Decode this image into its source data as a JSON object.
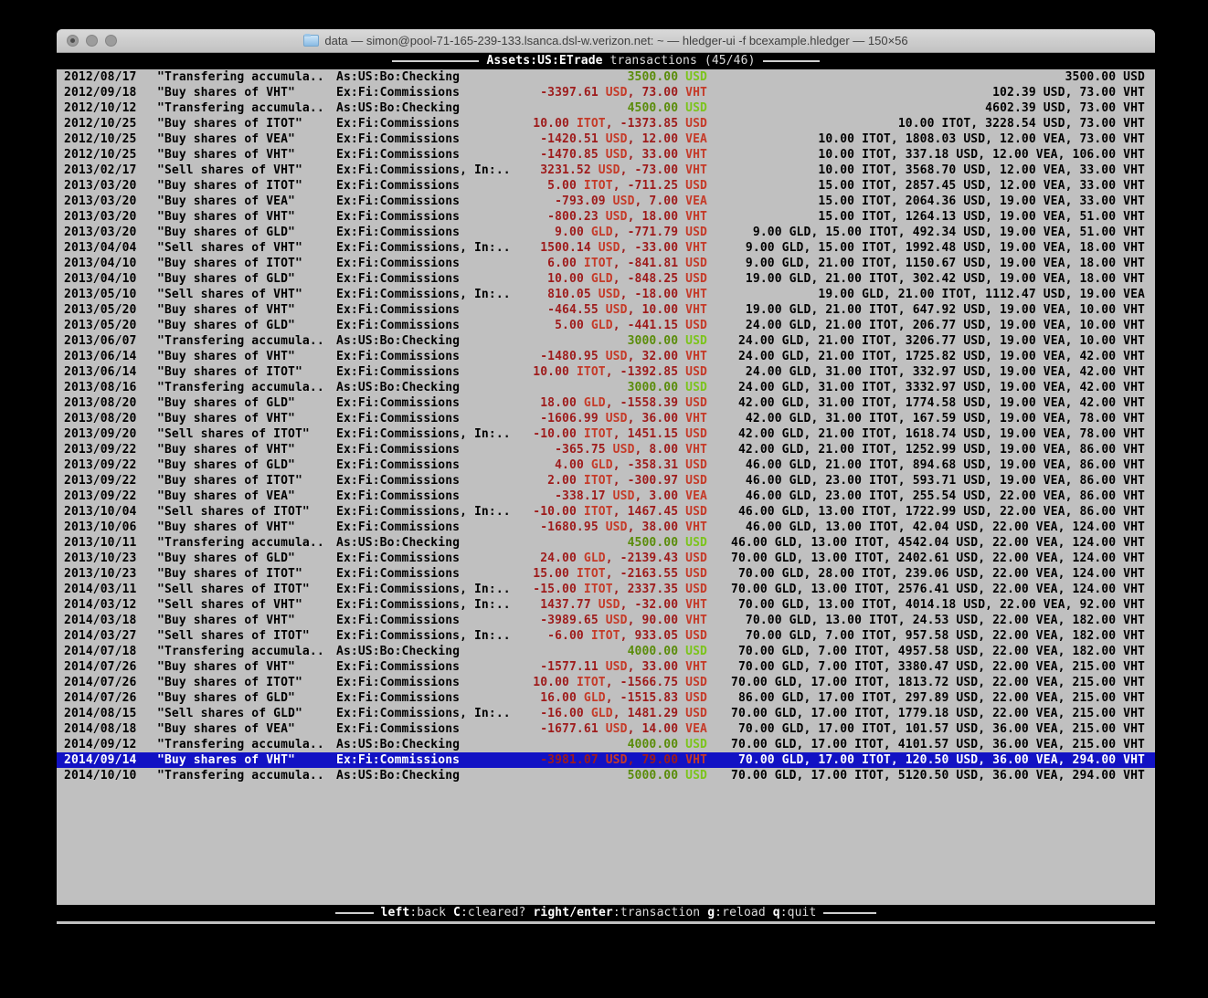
{
  "window": {
    "title": "data — simon@pool-71-165-239-133.lsanca.dsl-w.verizon.net: ~ — hledger-ui -f bcexample.hledger — 150×56"
  },
  "header": {
    "account": "Assets:US:ETrade",
    "mode_and_count": "transactions (45/46)"
  },
  "bottom_bar": {
    "items": [
      {
        "key": "left",
        "action": "back"
      },
      {
        "key": "C",
        "action": "cleared?"
      },
      {
        "key": "right/enter",
        "action": "transaction"
      },
      {
        "key": "g",
        "action": "reload"
      },
      {
        "key": "q",
        "action": "quit"
      }
    ]
  },
  "colors": {
    "terminal_bg": "#c0c0c0",
    "selection_bg": "#1212c4",
    "positive_num": "#5a8c0a",
    "positive_commodity": "#7cc41c",
    "negative_num": "#9e1b1b",
    "negative_commodity": "#c53a28",
    "bar_text": "#dcdcdc",
    "bar_text_bright": "#ffffff"
  },
  "transactions": {
    "rows": [
      {
        "date": "2012/08/17",
        "description": "\"Transfering accumula..",
        "other_accounts": "As:US:Bo:Checking",
        "amount": "3500.00 USD",
        "total": "3500.00 USD",
        "selected": false
      },
      {
        "date": "2012/09/18",
        "description": "\"Buy shares of VHT\"",
        "other_accounts": "Ex:Fi:Commissions",
        "amount": "-3397.61 USD, 73.00 VHT",
        "total": "102.39 USD, 73.00 VHT",
        "selected": false
      },
      {
        "date": "2012/10/12",
        "description": "\"Transfering accumula..",
        "other_accounts": "As:US:Bo:Checking",
        "amount": "4500.00 USD",
        "total": "4602.39 USD, 73.00 VHT",
        "selected": false
      },
      {
        "date": "2012/10/25",
        "description": "\"Buy shares of ITOT\"",
        "other_accounts": "Ex:Fi:Commissions",
        "amount": "10.00 ITOT, -1373.85 USD",
        "total": "10.00 ITOT, 3228.54 USD, 73.00 VHT",
        "selected": false
      },
      {
        "date": "2012/10/25",
        "description": "\"Buy shares of VEA\"",
        "other_accounts": "Ex:Fi:Commissions",
        "amount": "-1420.51 USD, 12.00 VEA",
        "total": "10.00 ITOT, 1808.03 USD, 12.00 VEA, 73.00 VHT",
        "selected": false
      },
      {
        "date": "2012/10/25",
        "description": "\"Buy shares of VHT\"",
        "other_accounts": "Ex:Fi:Commissions",
        "amount": "-1470.85 USD, 33.00 VHT",
        "total": "10.00 ITOT, 337.18 USD, 12.00 VEA, 106.00 VHT",
        "selected": false
      },
      {
        "date": "2013/02/17",
        "description": "\"Sell shares of VHT\"",
        "other_accounts": "Ex:Fi:Commissions, In:..",
        "amount": "3231.52 USD, -73.00 VHT",
        "total": "10.00 ITOT, 3568.70 USD, 12.00 VEA, 33.00 VHT",
        "selected": false
      },
      {
        "date": "2013/03/20",
        "description": "\"Buy shares of ITOT\"",
        "other_accounts": "Ex:Fi:Commissions",
        "amount": "5.00 ITOT, -711.25 USD",
        "total": "15.00 ITOT, 2857.45 USD, 12.00 VEA, 33.00 VHT",
        "selected": false
      },
      {
        "date": "2013/03/20",
        "description": "\"Buy shares of VEA\"",
        "other_accounts": "Ex:Fi:Commissions",
        "amount": "-793.09 USD, 7.00 VEA",
        "total": "15.00 ITOT, 2064.36 USD, 19.00 VEA, 33.00 VHT",
        "selected": false
      },
      {
        "date": "2013/03/20",
        "description": "\"Buy shares of VHT\"",
        "other_accounts": "Ex:Fi:Commissions",
        "amount": "-800.23 USD, 18.00 VHT",
        "total": "15.00 ITOT, 1264.13 USD, 19.00 VEA, 51.00 VHT",
        "selected": false
      },
      {
        "date": "2013/03/20",
        "description": "\"Buy shares of GLD\"",
        "other_accounts": "Ex:Fi:Commissions",
        "amount": "9.00 GLD, -771.79 USD",
        "total": "9.00 GLD, 15.00 ITOT, 492.34 USD, 19.00 VEA, 51.00 VHT",
        "selected": false
      },
      {
        "date": "2013/04/04",
        "description": "\"Sell shares of VHT\"",
        "other_accounts": "Ex:Fi:Commissions, In:..",
        "amount": "1500.14 USD, -33.00 VHT",
        "total": "9.00 GLD, 15.00 ITOT, 1992.48 USD, 19.00 VEA, 18.00 VHT",
        "selected": false
      },
      {
        "date": "2013/04/10",
        "description": "\"Buy shares of ITOT\"",
        "other_accounts": "Ex:Fi:Commissions",
        "amount": "6.00 ITOT, -841.81 USD",
        "total": "9.00 GLD, 21.00 ITOT, 1150.67 USD, 19.00 VEA, 18.00 VHT",
        "selected": false
      },
      {
        "date": "2013/04/10",
        "description": "\"Buy shares of GLD\"",
        "other_accounts": "Ex:Fi:Commissions",
        "amount": "10.00 GLD, -848.25 USD",
        "total": "19.00 GLD, 21.00 ITOT, 302.42 USD, 19.00 VEA, 18.00 VHT",
        "selected": false
      },
      {
        "date": "2013/05/10",
        "description": "\"Sell shares of VHT\"",
        "other_accounts": "Ex:Fi:Commissions, In:..",
        "amount": "810.05 USD, -18.00 VHT",
        "total": "19.00 GLD, 21.00 ITOT, 1112.47 USD, 19.00 VEA",
        "selected": false
      },
      {
        "date": "2013/05/20",
        "description": "\"Buy shares of VHT\"",
        "other_accounts": "Ex:Fi:Commissions",
        "amount": "-464.55 USD, 10.00 VHT",
        "total": "19.00 GLD, 21.00 ITOT, 647.92 USD, 19.00 VEA, 10.00 VHT",
        "selected": false
      },
      {
        "date": "2013/05/20",
        "description": "\"Buy shares of GLD\"",
        "other_accounts": "Ex:Fi:Commissions",
        "amount": "5.00 GLD, -441.15 USD",
        "total": "24.00 GLD, 21.00 ITOT, 206.77 USD, 19.00 VEA, 10.00 VHT",
        "selected": false
      },
      {
        "date": "2013/06/07",
        "description": "\"Transfering accumula..",
        "other_accounts": "As:US:Bo:Checking",
        "amount": "3000.00 USD",
        "total": "24.00 GLD, 21.00 ITOT, 3206.77 USD, 19.00 VEA, 10.00 VHT",
        "selected": false
      },
      {
        "date": "2013/06/14",
        "description": "\"Buy shares of VHT\"",
        "other_accounts": "Ex:Fi:Commissions",
        "amount": "-1480.95 USD, 32.00 VHT",
        "total": "24.00 GLD, 21.00 ITOT, 1725.82 USD, 19.00 VEA, 42.00 VHT",
        "selected": false
      },
      {
        "date": "2013/06/14",
        "description": "\"Buy shares of ITOT\"",
        "other_accounts": "Ex:Fi:Commissions",
        "amount": "10.00 ITOT, -1392.85 USD",
        "total": "24.00 GLD, 31.00 ITOT, 332.97 USD, 19.00 VEA, 42.00 VHT",
        "selected": false
      },
      {
        "date": "2013/08/16",
        "description": "\"Transfering accumula..",
        "other_accounts": "As:US:Bo:Checking",
        "amount": "3000.00 USD",
        "total": "24.00 GLD, 31.00 ITOT, 3332.97 USD, 19.00 VEA, 42.00 VHT",
        "selected": false
      },
      {
        "date": "2013/08/20",
        "description": "\"Buy shares of GLD\"",
        "other_accounts": "Ex:Fi:Commissions",
        "amount": "18.00 GLD, -1558.39 USD",
        "total": "42.00 GLD, 31.00 ITOT, 1774.58 USD, 19.00 VEA, 42.00 VHT",
        "selected": false
      },
      {
        "date": "2013/08/20",
        "description": "\"Buy shares of VHT\"",
        "other_accounts": "Ex:Fi:Commissions",
        "amount": "-1606.99 USD, 36.00 VHT",
        "total": "42.00 GLD, 31.00 ITOT, 167.59 USD, 19.00 VEA, 78.00 VHT",
        "selected": false
      },
      {
        "date": "2013/09/20",
        "description": "\"Sell shares of ITOT\"",
        "other_accounts": "Ex:Fi:Commissions, In:..",
        "amount": "-10.00 ITOT, 1451.15 USD",
        "total": "42.00 GLD, 21.00 ITOT, 1618.74 USD, 19.00 VEA, 78.00 VHT",
        "selected": false
      },
      {
        "date": "2013/09/22",
        "description": "\"Buy shares of VHT\"",
        "other_accounts": "Ex:Fi:Commissions",
        "amount": "-365.75 USD, 8.00 VHT",
        "total": "42.00 GLD, 21.00 ITOT, 1252.99 USD, 19.00 VEA, 86.00 VHT",
        "selected": false
      },
      {
        "date": "2013/09/22",
        "description": "\"Buy shares of GLD\"",
        "other_accounts": "Ex:Fi:Commissions",
        "amount": "4.00 GLD, -358.31 USD",
        "total": "46.00 GLD, 21.00 ITOT, 894.68 USD, 19.00 VEA, 86.00 VHT",
        "selected": false
      },
      {
        "date": "2013/09/22",
        "description": "\"Buy shares of ITOT\"",
        "other_accounts": "Ex:Fi:Commissions",
        "amount": "2.00 ITOT, -300.97 USD",
        "total": "46.00 GLD, 23.00 ITOT, 593.71 USD, 19.00 VEA, 86.00 VHT",
        "selected": false
      },
      {
        "date": "2013/09/22",
        "description": "\"Buy shares of VEA\"",
        "other_accounts": "Ex:Fi:Commissions",
        "amount": "-338.17 USD, 3.00 VEA",
        "total": "46.00 GLD, 23.00 ITOT, 255.54 USD, 22.00 VEA, 86.00 VHT",
        "selected": false
      },
      {
        "date": "2013/10/04",
        "description": "\"Sell shares of ITOT\"",
        "other_accounts": "Ex:Fi:Commissions, In:..",
        "amount": "-10.00 ITOT, 1467.45 USD",
        "total": "46.00 GLD, 13.00 ITOT, 1722.99 USD, 22.00 VEA, 86.00 VHT",
        "selected": false
      },
      {
        "date": "2013/10/06",
        "description": "\"Buy shares of VHT\"",
        "other_accounts": "Ex:Fi:Commissions",
        "amount": "-1680.95 USD, 38.00 VHT",
        "total": "46.00 GLD, 13.00 ITOT, 42.04 USD, 22.00 VEA, 124.00 VHT",
        "selected": false
      },
      {
        "date": "2013/10/11",
        "description": "\"Transfering accumula..",
        "other_accounts": "As:US:Bo:Checking",
        "amount": "4500.00 USD",
        "total": "46.00 GLD, 13.00 ITOT, 4542.04 USD, 22.00 VEA, 124.00 VHT",
        "selected": false
      },
      {
        "date": "2013/10/23",
        "description": "\"Buy shares of GLD\"",
        "other_accounts": "Ex:Fi:Commissions",
        "amount": "24.00 GLD, -2139.43 USD",
        "total": "70.00 GLD, 13.00 ITOT, 2402.61 USD, 22.00 VEA, 124.00 VHT",
        "selected": false
      },
      {
        "date": "2013/10/23",
        "description": "\"Buy shares of ITOT\"",
        "other_accounts": "Ex:Fi:Commissions",
        "amount": "15.00 ITOT, -2163.55 USD",
        "total": "70.00 GLD, 28.00 ITOT, 239.06 USD, 22.00 VEA, 124.00 VHT",
        "selected": false
      },
      {
        "date": "2014/03/11",
        "description": "\"Sell shares of ITOT\"",
        "other_accounts": "Ex:Fi:Commissions, In:..",
        "amount": "-15.00 ITOT, 2337.35 USD",
        "total": "70.00 GLD, 13.00 ITOT, 2576.41 USD, 22.00 VEA, 124.00 VHT",
        "selected": false
      },
      {
        "date": "2014/03/12",
        "description": "\"Sell shares of VHT\"",
        "other_accounts": "Ex:Fi:Commissions, In:..",
        "amount": "1437.77 USD, -32.00 VHT",
        "total": "70.00 GLD, 13.00 ITOT, 4014.18 USD, 22.00 VEA, 92.00 VHT",
        "selected": false
      },
      {
        "date": "2014/03/18",
        "description": "\"Buy shares of VHT\"",
        "other_accounts": "Ex:Fi:Commissions",
        "amount": "-3989.65 USD, 90.00 VHT",
        "total": "70.00 GLD, 13.00 ITOT, 24.53 USD, 22.00 VEA, 182.00 VHT",
        "selected": false
      },
      {
        "date": "2014/03/27",
        "description": "\"Sell shares of ITOT\"",
        "other_accounts": "Ex:Fi:Commissions, In:..",
        "amount": "-6.00 ITOT, 933.05 USD",
        "total": "70.00 GLD, 7.00 ITOT, 957.58 USD, 22.00 VEA, 182.00 VHT",
        "selected": false
      },
      {
        "date": "2014/07/18",
        "description": "\"Transfering accumula..",
        "other_accounts": "As:US:Bo:Checking",
        "amount": "4000.00 USD",
        "total": "70.00 GLD, 7.00 ITOT, 4957.58 USD, 22.00 VEA, 182.00 VHT",
        "selected": false
      },
      {
        "date": "2014/07/26",
        "description": "\"Buy shares of VHT\"",
        "other_accounts": "Ex:Fi:Commissions",
        "amount": "-1577.11 USD, 33.00 VHT",
        "total": "70.00 GLD, 7.00 ITOT, 3380.47 USD, 22.00 VEA, 215.00 VHT",
        "selected": false
      },
      {
        "date": "2014/07/26",
        "description": "\"Buy shares of ITOT\"",
        "other_accounts": "Ex:Fi:Commissions",
        "amount": "10.00 ITOT, -1566.75 USD",
        "total": "70.00 GLD, 17.00 ITOT, 1813.72 USD, 22.00 VEA, 215.00 VHT",
        "selected": false
      },
      {
        "date": "2014/07/26",
        "description": "\"Buy shares of GLD\"",
        "other_accounts": "Ex:Fi:Commissions",
        "amount": "16.00 GLD, -1515.83 USD",
        "total": "86.00 GLD, 17.00 ITOT, 297.89 USD, 22.00 VEA, 215.00 VHT",
        "selected": false
      },
      {
        "date": "2014/08/15",
        "description": "\"Sell shares of GLD\"",
        "other_accounts": "Ex:Fi:Commissions, In:..",
        "amount": "-16.00 GLD, 1481.29 USD",
        "total": "70.00 GLD, 17.00 ITOT, 1779.18 USD, 22.00 VEA, 215.00 VHT",
        "selected": false
      },
      {
        "date": "2014/08/18",
        "description": "\"Buy shares of VEA\"",
        "other_accounts": "Ex:Fi:Commissions",
        "amount": "-1677.61 USD, 14.00 VEA",
        "total": "70.00 GLD, 17.00 ITOT, 101.57 USD, 36.00 VEA, 215.00 VHT",
        "selected": false
      },
      {
        "date": "2014/09/12",
        "description": "\"Transfering accumula..",
        "other_accounts": "As:US:Bo:Checking",
        "amount": "4000.00 USD",
        "total": "70.00 GLD, 17.00 ITOT, 4101.57 USD, 36.00 VEA, 215.00 VHT",
        "selected": false
      },
      {
        "date": "2014/09/14",
        "description": "\"Buy shares of VHT\"",
        "other_accounts": "Ex:Fi:Commissions",
        "amount": "-3981.07 USD, 79.00 VHT",
        "total": "70.00 GLD, 17.00 ITOT, 120.50 USD, 36.00 VEA, 294.00 VHT",
        "selected": true
      },
      {
        "date": "2014/10/10",
        "description": "\"Transfering accumula..",
        "other_accounts": "As:US:Bo:Checking",
        "amount": "5000.00 USD",
        "total": "70.00 GLD, 17.00 ITOT, 5120.50 USD, 36.00 VEA, 294.00 VHT",
        "selected": false
      }
    ]
  }
}
